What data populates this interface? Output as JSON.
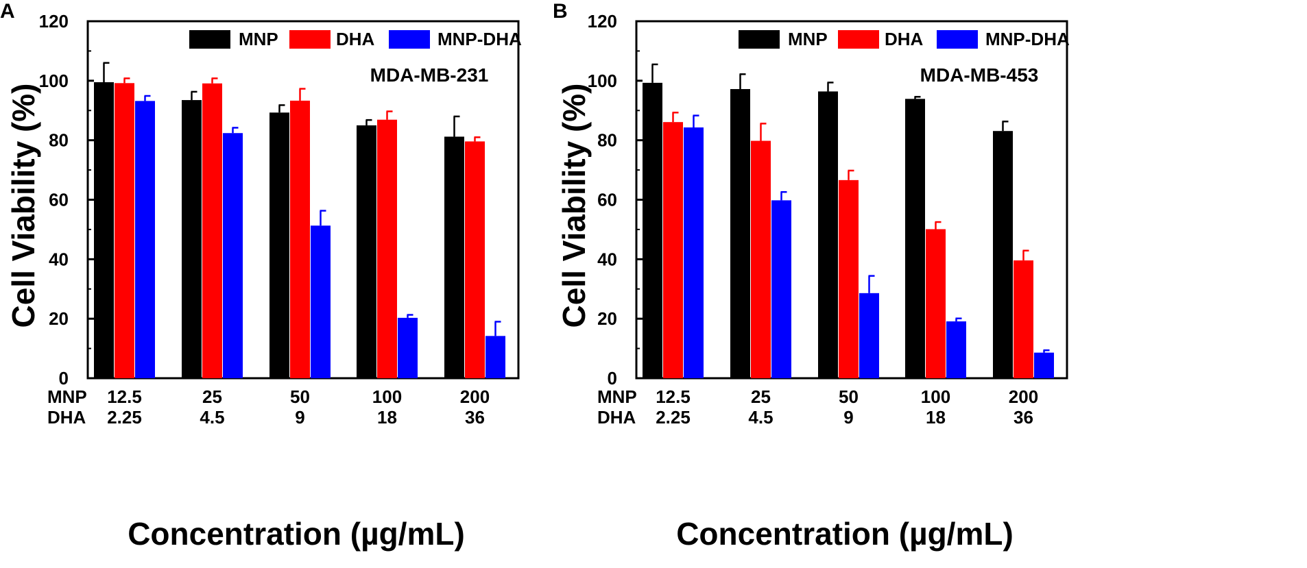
{
  "colors": {
    "MNP": "#000000",
    "DHA": "#ff0000",
    "MNP-DHA": "#0000ff",
    "axis": "#000000",
    "background": "#ffffff"
  },
  "chart_data": [
    {
      "type": "bar",
      "panel_label": "A",
      "cell_line": "MDA-MB-231",
      "ylabel": "Cell Viability (%)",
      "xlabel": "Concentration (µg/mL)",
      "ylim": [
        0,
        120
      ],
      "yticks": [
        0,
        20,
        40,
        60,
        80,
        100,
        120
      ],
      "grid": false,
      "legend_position": "top-right",
      "row_labels": [
        "MNP",
        "DHA"
      ],
      "categories_mnp": [
        "12.5",
        "25",
        "50",
        "100",
        "200"
      ],
      "categories_dha": [
        "2.25",
        "4.5",
        "9",
        "18",
        "36"
      ],
      "series": [
        {
          "name": "MNP",
          "values": [
            99.5,
            93.5,
            89.3,
            85.0,
            81.2
          ],
          "errors": [
            6.5,
            2.8,
            2.5,
            1.8,
            6.8
          ]
        },
        {
          "name": "DHA",
          "values": [
            99.2,
            99.1,
            93.3,
            86.9,
            79.6
          ],
          "errors": [
            1.6,
            1.7,
            4.0,
            2.8,
            1.4
          ]
        },
        {
          "name": "MNP-DHA",
          "values": [
            93.2,
            82.4,
            51.3,
            20.3,
            14.2
          ],
          "errors": [
            1.7,
            1.8,
            5.0,
            1.0,
            4.8
          ]
        }
      ]
    },
    {
      "type": "bar",
      "panel_label": "B",
      "cell_line": "MDA-MB-453",
      "ylabel": "Cell Viability (%)",
      "xlabel": "Concentration (µg/mL)",
      "ylim": [
        0,
        120
      ],
      "yticks": [
        0,
        20,
        40,
        60,
        80,
        100,
        120
      ],
      "grid": false,
      "legend_position": "top-right",
      "row_labels": [
        "MNP",
        "DHA"
      ],
      "categories_mnp": [
        "12.5",
        "25",
        "50",
        "100",
        "200"
      ],
      "categories_dha": [
        "2.25",
        "4.5",
        "9",
        "18",
        "36"
      ],
      "series": [
        {
          "name": "MNP",
          "values": [
            99.3,
            97.2,
            96.4,
            93.9,
            83.1
          ],
          "errors": [
            6.2,
            5.0,
            3.0,
            0.7,
            3.2
          ]
        },
        {
          "name": "DHA",
          "values": [
            86.1,
            79.8,
            66.6,
            50.1,
            39.6
          ],
          "errors": [
            3.2,
            5.8,
            3.2,
            2.4,
            3.3
          ]
        },
        {
          "name": "MNP-DHA",
          "values": [
            84.3,
            59.8,
            28.6,
            19.1,
            8.6
          ],
          "errors": [
            4.0,
            2.8,
            5.8,
            1.0,
            0.8
          ]
        }
      ]
    }
  ]
}
